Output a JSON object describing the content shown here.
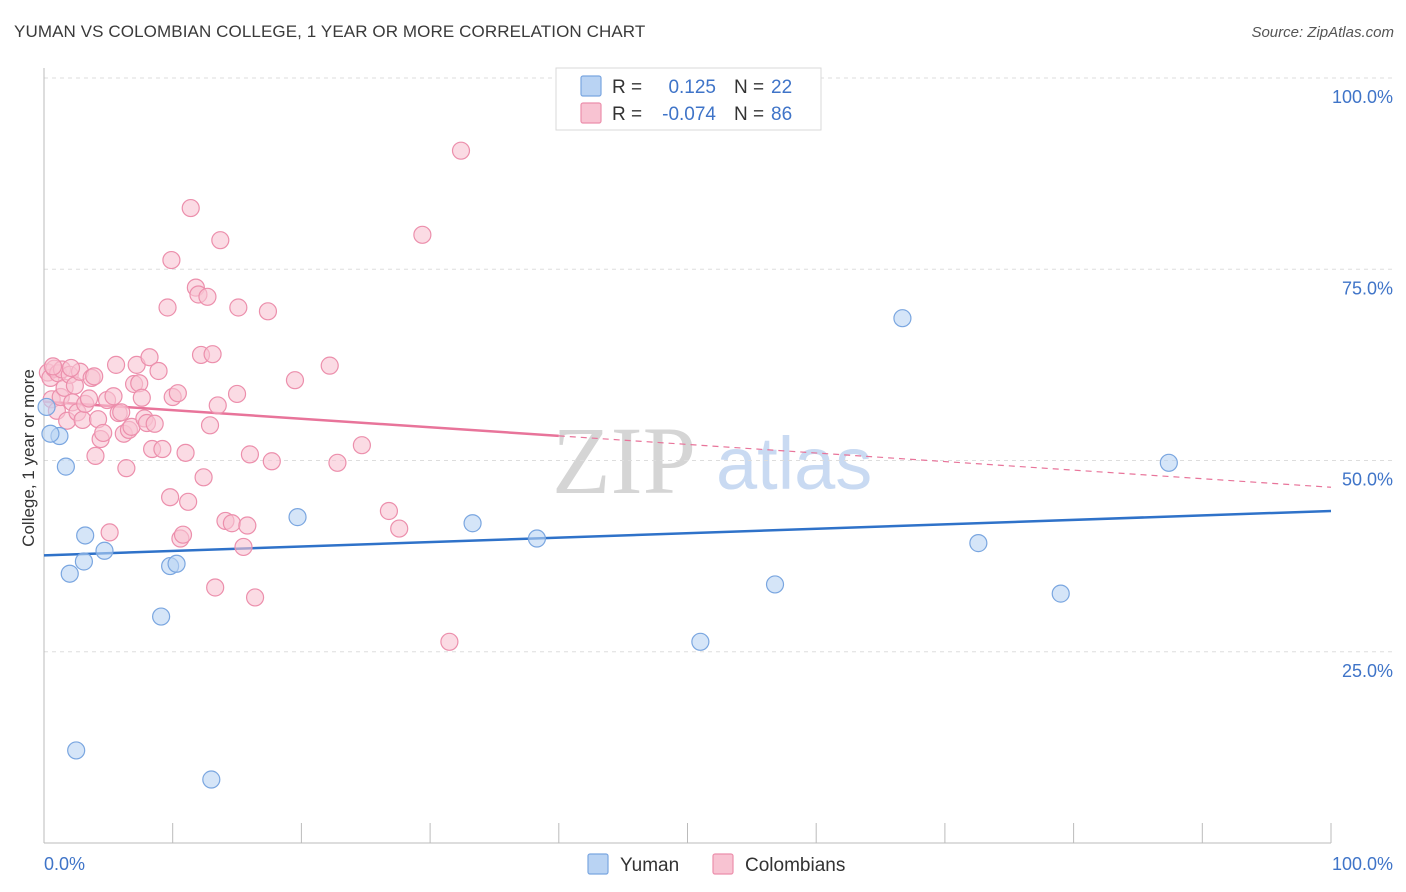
{
  "header": {
    "title": "YUMAN VS COLOMBIAN COLLEGE, 1 YEAR OR MORE CORRELATION CHART",
    "source": "Source: ZipAtlas.com"
  },
  "watermark": {
    "zip": "ZIP",
    "atlas": "atlas"
  },
  "colors": {
    "yuman_fill": "#b9d3f3",
    "yuman_stroke": "#7aa6e0",
    "yuman_line": "#2f72c9",
    "colombians_fill": "#f8c3d2",
    "colombians_stroke": "#ec8fac",
    "colombians_line": "#e8749a",
    "tick_label": "#3f74c8",
    "grid": "#dddddd"
  },
  "legend": {
    "rows": [
      {
        "r_label": "R =",
        "r_value": "0.125",
        "n_label": "N =",
        "n_value": "22"
      },
      {
        "r_label": "R =",
        "r_value": "-0.074",
        "n_label": "N =",
        "n_value": "86"
      }
    ]
  },
  "chart_data": {
    "type": "scatter",
    "title": "YUMAN VS COLOMBIAN COLLEGE, 1 YEAR OR MORE CORRELATION CHART",
    "xlabel": "",
    "ylabel": "College, 1 year or more",
    "xlim": [
      0,
      100
    ],
    "ylim": [
      0,
      100
    ],
    "x_tick_labels": [
      "0.0%",
      "100.0%"
    ],
    "y_tick_labels": [
      "100.0%",
      "75.0%",
      "50.0%",
      "25.0%"
    ],
    "y_ticks": [
      100,
      75,
      50,
      25
    ],
    "grid": true,
    "legend_position": "top-center",
    "series": [
      {
        "name": "Yuman",
        "r": 0.125,
        "n": 22,
        "trend": {
          "x": [
            0,
            100
          ],
          "y": [
            37.6,
            43.4
          ],
          "dashed_from": null
        },
        "points": [
          {
            "x": 0.2,
            "y": 57.0
          },
          {
            "x": 1.2,
            "y": 53.2
          },
          {
            "x": 1.7,
            "y": 49.2
          },
          {
            "x": 2.0,
            "y": 35.2
          },
          {
            "x": 3.1,
            "y": 36.8
          },
          {
            "x": 3.2,
            "y": 40.2
          },
          {
            "x": 4.7,
            "y": 38.2
          },
          {
            "x": 9.1,
            "y": 29.6
          },
          {
            "x": 9.8,
            "y": 36.2
          },
          {
            "x": 10.3,
            "y": 36.5
          },
          {
            "x": 2.5,
            "y": 12.1
          },
          {
            "x": 13.0,
            "y": 8.3
          },
          {
            "x": 19.7,
            "y": 42.6
          },
          {
            "x": 33.3,
            "y": 41.8
          },
          {
            "x": 38.3,
            "y": 39.8
          },
          {
            "x": 51.0,
            "y": 26.3
          },
          {
            "x": 56.8,
            "y": 33.8
          },
          {
            "x": 66.7,
            "y": 68.6
          },
          {
            "x": 72.6,
            "y": 39.2
          },
          {
            "x": 79.0,
            "y": 32.6
          },
          {
            "x": 87.4,
            "y": 49.7
          },
          {
            "x": 0.5,
            "y": 53.5
          }
        ]
      },
      {
        "name": "Colombians",
        "r": -0.074,
        "n": 86,
        "trend": {
          "x": [
            0,
            100
          ],
          "y": [
            57.7,
            46.5
          ],
          "solid_until": 40
        },
        "points": [
          {
            "x": 0.3,
            "y": 61.5
          },
          {
            "x": 0.5,
            "y": 60.8
          },
          {
            "x": 0.6,
            "y": 58.0
          },
          {
            "x": 0.8,
            "y": 62.0
          },
          {
            "x": 1.0,
            "y": 56.5
          },
          {
            "x": 1.1,
            "y": 61.4
          },
          {
            "x": 1.3,
            "y": 58.3
          },
          {
            "x": 1.4,
            "y": 61.9
          },
          {
            "x": 1.6,
            "y": 59.5
          },
          {
            "x": 1.8,
            "y": 55.2
          },
          {
            "x": 2.0,
            "y": 61.2
          },
          {
            "x": 2.2,
            "y": 57.6
          },
          {
            "x": 2.4,
            "y": 59.8
          },
          {
            "x": 2.6,
            "y": 56.3
          },
          {
            "x": 2.8,
            "y": 61.6
          },
          {
            "x": 3.0,
            "y": 55.3
          },
          {
            "x": 3.2,
            "y": 57.4
          },
          {
            "x": 3.5,
            "y": 58.1
          },
          {
            "x": 3.7,
            "y": 60.8
          },
          {
            "x": 4.0,
            "y": 50.6
          },
          {
            "x": 4.2,
            "y": 55.4
          },
          {
            "x": 4.4,
            "y": 52.8
          },
          {
            "x": 4.6,
            "y": 53.6
          },
          {
            "x": 4.9,
            "y": 57.9
          },
          {
            "x": 5.1,
            "y": 40.6
          },
          {
            "x": 5.4,
            "y": 58.4
          },
          {
            "x": 5.6,
            "y": 62.5
          },
          {
            "x": 5.8,
            "y": 56.2
          },
          {
            "x": 6.0,
            "y": 56.3
          },
          {
            "x": 6.2,
            "y": 53.5
          },
          {
            "x": 6.4,
            "y": 49.0
          },
          {
            "x": 6.6,
            "y": 54.0
          },
          {
            "x": 6.8,
            "y": 54.4
          },
          {
            "x": 7.0,
            "y": 60.0
          },
          {
            "x": 7.2,
            "y": 62.5
          },
          {
            "x": 7.4,
            "y": 60.1
          },
          {
            "x": 7.6,
            "y": 58.2
          },
          {
            "x": 7.8,
            "y": 55.5
          },
          {
            "x": 8.0,
            "y": 54.9
          },
          {
            "x": 8.2,
            "y": 63.5
          },
          {
            "x": 8.4,
            "y": 51.5
          },
          {
            "x": 8.6,
            "y": 54.8
          },
          {
            "x": 8.9,
            "y": 61.7
          },
          {
            "x": 9.2,
            "y": 51.5
          },
          {
            "x": 9.6,
            "y": 70.0
          },
          {
            "x": 9.8,
            "y": 45.2
          },
          {
            "x": 10.0,
            "y": 58.3
          },
          {
            "x": 10.4,
            "y": 58.8
          },
          {
            "x": 10.6,
            "y": 39.8
          },
          {
            "x": 10.8,
            "y": 40.3
          },
          {
            "x": 11.0,
            "y": 51.0
          },
          {
            "x": 11.2,
            "y": 44.6
          },
          {
            "x": 11.4,
            "y": 83.0
          },
          {
            "x": 11.8,
            "y": 72.6
          },
          {
            "x": 12.0,
            "y": 71.7
          },
          {
            "x": 12.2,
            "y": 63.8
          },
          {
            "x": 12.4,
            "y": 47.8
          },
          {
            "x": 12.7,
            "y": 71.4
          },
          {
            "x": 12.9,
            "y": 54.6
          },
          {
            "x": 13.1,
            "y": 63.9
          },
          {
            "x": 13.3,
            "y": 33.4
          },
          {
            "x": 13.5,
            "y": 57.2
          },
          {
            "x": 13.7,
            "y": 78.8
          },
          {
            "x": 14.1,
            "y": 42.1
          },
          {
            "x": 14.6,
            "y": 41.8
          },
          {
            "x": 15.0,
            "y": 58.7
          },
          {
            "x": 15.1,
            "y": 70.0
          },
          {
            "x": 15.5,
            "y": 38.7
          },
          {
            "x": 15.8,
            "y": 41.5
          },
          {
            "x": 16.0,
            "y": 50.8
          },
          {
            "x": 16.4,
            "y": 32.1
          },
          {
            "x": 17.4,
            "y": 69.5
          },
          {
            "x": 17.7,
            "y": 49.9
          },
          {
            "x": 19.5,
            "y": 60.5
          },
          {
            "x": 22.2,
            "y": 62.4
          },
          {
            "x": 22.8,
            "y": 49.7
          },
          {
            "x": 24.7,
            "y": 52.0
          },
          {
            "x": 26.8,
            "y": 43.4
          },
          {
            "x": 27.6,
            "y": 41.1
          },
          {
            "x": 29.4,
            "y": 79.5
          },
          {
            "x": 31.5,
            "y": 26.3
          },
          {
            "x": 32.4,
            "y": 90.5
          },
          {
            "x": 9.9,
            "y": 76.2
          },
          {
            "x": 3.9,
            "y": 61.0
          },
          {
            "x": 2.1,
            "y": 62.1
          },
          {
            "x": 0.7,
            "y": 62.3
          }
        ]
      }
    ]
  },
  "bottom_legend": {
    "items": [
      "Yuman",
      "Colombians"
    ]
  }
}
